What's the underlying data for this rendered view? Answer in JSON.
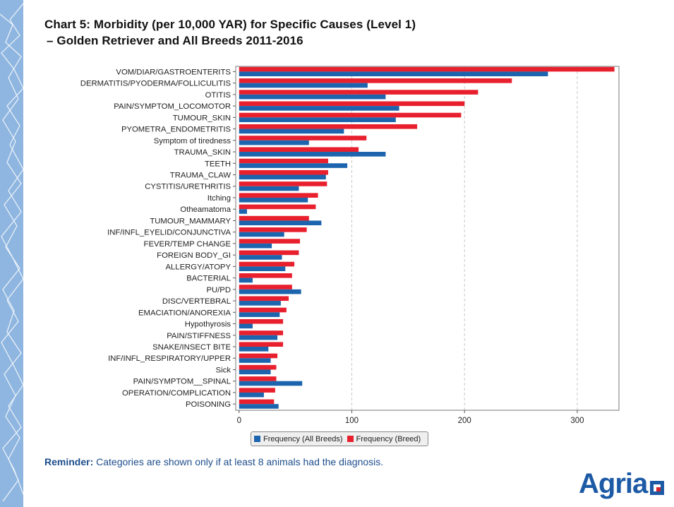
{
  "title_line1": "Chart 5: Morbidity (per 10,000 YAR) for Specific Causes (Level 1)",
  "title_line2": "– Golden Retriever and All Breeds 2011-2016",
  "reminder_label": "Reminder:",
  "reminder_text": "Categories are shown only if at least 8 animals had the diagnosis.",
  "logo_text": "Agria",
  "colors": {
    "breed": "#e8202e",
    "all_breeds": "#1c64ad",
    "band": "#8fb6e0"
  },
  "chart_data": {
    "type": "bar",
    "orientation": "horizontal",
    "xlim": [
      -3,
      337
    ],
    "xticks": [
      0,
      100,
      200,
      300
    ],
    "grid": "vertical dashed",
    "legend_position": "bottom-center",
    "categories": [
      "VOM/DIAR/GASTROENTERITS",
      "DERMATITIS/PYODERMA/FOLLICULITIS",
      "OTITIS",
      "PAIN/SYMPTOM_LOCOMOTOR",
      "TUMOUR_SKIN",
      "PYOMETRA_ENDOMETRITIS",
      "Symptom of tiredness",
      "TRAUMA_SKIN",
      "TEETH",
      "TRAUMA_CLAW",
      "CYSTITIS/URETHRITIS",
      "Itching",
      "Otheamatoma",
      "TUMOUR_MAMMARY",
      "INF/INFL_EYELID/CONJUNCTIVA",
      "FEVER/TEMP CHANGE",
      "FOREIGN BODY_GI",
      "ALLERGY/ATOPY",
      "BACTERIAL",
      "PU/PD",
      "DISC/VERTEBRAL",
      "EMACIATION/ANOREXIA",
      "Hypothyrosis",
      "PAIN/STIFFNESS",
      "SNAKE/INSECT BITE",
      "INF/INFL_RESPIRATORY/UPPER",
      "Sick",
      "PAIN/SYMPTOM__SPINAL",
      "OPERATION/COMPLICATION",
      "POISONING"
    ],
    "series": [
      {
        "name": "Frequency (Breed)",
        "color": "#e8202e",
        "values": [
          333,
          242,
          212,
          200,
          197,
          158,
          113,
          106,
          79,
          79,
          78,
          70,
          68,
          62,
          60,
          54,
          53,
          49,
          47,
          47,
          44,
          42,
          39,
          39,
          39,
          34,
          33,
          33,
          32,
          31
        ]
      },
      {
        "name": "Frequency (All Breeds)",
        "color": "#1c64ad",
        "values": [
          274,
          114,
          130,
          142,
          139,
          93,
          62,
          130,
          96,
          77,
          53,
          61,
          7,
          73,
          40,
          29,
          38,
          41,
          12,
          55,
          37,
          36,
          12,
          34,
          26,
          28,
          28,
          56,
          22,
          35
        ]
      }
    ]
  }
}
